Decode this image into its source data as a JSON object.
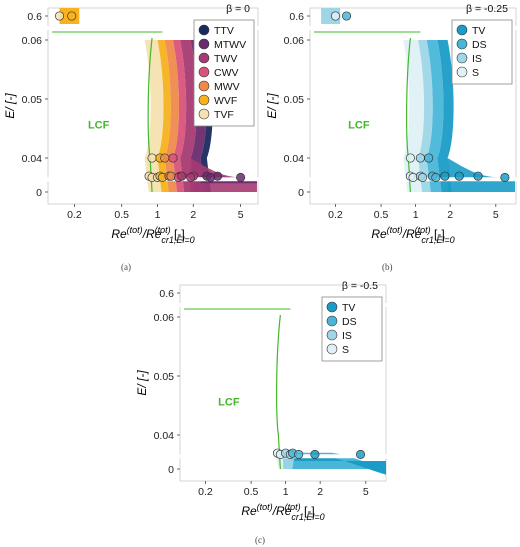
{
  "axes_text": {
    "ylabel": "E/ [-]",
    "xlabel_main": "Re",
    "xlabel_sup1": "(tot)",
    "xlabel_slash": "/Re",
    "xlabel_sub2": "cr1,El=0",
    "xlabel_sup2": "(tot)",
    "xlabel_unit": "[-]"
  },
  "region_label": "LCF",
  "chart_data": [
    {
      "type": "scatter",
      "panel": "a",
      "caption": "(a)",
      "beta_label": "β = 0",
      "x_ticks": [
        "0.2",
        "0.5",
        "1",
        "2",
        "5"
      ],
      "y_ticks": [
        "0",
        "0.04",
        "0.05",
        "0.06",
        "0.6"
      ],
      "x_scale": "log",
      "legend_placement": "top-right",
      "legend": [
        {
          "label": "TTV",
          "color": "#1a2a5e"
        },
        {
          "label": "MTWV",
          "color": "#6a2a6e"
        },
        {
          "label": "TWV",
          "color": "#a63a72"
        },
        {
          "label": "CWV",
          "color": "#d9537a"
        },
        {
          "label": "MWV",
          "color": "#f08a4b"
        },
        {
          "label": "WVF",
          "color": "#f7b21d"
        },
        {
          "label": "TVF",
          "color": "#f4e2b0"
        }
      ],
      "series": [
        {
          "name": "TVF",
          "points": [
            [
              0.15,
              0.6
            ],
            [
              0.9,
              0.04
            ],
            [
              0.85,
              0.036
            ],
            [
              0.9,
              0.033
            ],
            [
              1.0,
              0.033
            ]
          ]
        },
        {
          "name": "WVF",
          "points": [
            [
              0.19,
              0.6
            ],
            [
              1.05,
              0.04
            ],
            [
              1.05,
              0.036
            ],
            [
              1.1,
              0.033
            ]
          ]
        },
        {
          "name": "MWV",
          "points": [
            [
              1.15,
              0.04
            ],
            [
              1.25,
              0.036
            ],
            [
              1.3,
              0.036
            ]
          ]
        },
        {
          "name": "CWV",
          "points": [
            [
              1.35,
              0.04
            ],
            [
              1.55,
              0.036
            ],
            [
              1.5,
              0.033
            ]
          ]
        },
        {
          "name": "TWV",
          "points": [
            [
              1.6,
              0.036
            ],
            [
              2.0,
              0.036
            ],
            [
              1.9,
              0.033
            ]
          ]
        },
        {
          "name": "MTWV",
          "points": [
            [
              2.6,
              0.036
            ],
            [
              3.2,
              0.036
            ],
            [
              2.8,
              0.033
            ],
            [
              5.0,
              0.033
            ]
          ]
        },
        {
          "name": "TTV",
          "points": []
        }
      ]
    },
    {
      "type": "scatter",
      "panel": "b",
      "caption": "(b)",
      "beta_label": "β = -0.25",
      "x_ticks": [
        "0.2",
        "0.5",
        "1",
        "2",
        "5"
      ],
      "y_ticks": [
        "0",
        "0.04",
        "0.05",
        "0.06",
        "0.6"
      ],
      "x_scale": "log",
      "legend_placement": "top-right",
      "legend": [
        {
          "label": "TV",
          "color": "#1a9cc6"
        },
        {
          "label": "DS",
          "color": "#49b6d8"
        },
        {
          "label": "IS",
          "color": "#9ed6e8"
        },
        {
          "label": "S",
          "color": "#dff1f6"
        }
      ],
      "series": [
        {
          "name": "S",
          "points": [
            [
              0.2,
              0.6
            ],
            [
              0.9,
              0.04
            ],
            [
              0.9,
              0.036
            ],
            [
              0.95,
              0.033
            ]
          ]
        },
        {
          "name": "IS",
          "points": [
            [
              1.1,
              0.04
            ],
            [
              1.1,
              0.036
            ],
            [
              1.15,
              0.033
            ]
          ]
        },
        {
          "name": "DS",
          "points": [
            [
              0.25,
              0.6
            ],
            [
              1.3,
              0.04
            ],
            [
              1.4,
              0.036
            ],
            [
              1.5,
              0.033
            ]
          ]
        },
        {
          "name": "TV",
          "points": [
            [
              1.8,
              0.036
            ],
            [
              2.4,
              0.036
            ],
            [
              3.5,
              0.036
            ],
            [
              6.0,
              0.033
            ]
          ]
        }
      ]
    },
    {
      "type": "scatter",
      "panel": "c",
      "caption": "(c)",
      "beta_label": "β = -0.5",
      "x_ticks": [
        "0.2",
        "0.5",
        "1",
        "2",
        "5"
      ],
      "y_ticks": [
        "0",
        "0.04",
        "0.05",
        "0.06",
        "0.6"
      ],
      "x_scale": "log",
      "legend_placement": "top-right",
      "legend": [
        {
          "label": "TV",
          "color": "#1a9cc6"
        },
        {
          "label": "DS",
          "color": "#49b6d8"
        },
        {
          "label": "IS",
          "color": "#9ed6e8"
        },
        {
          "label": "S",
          "color": "#dff1f6"
        }
      ],
      "series": [
        {
          "name": "S",
          "points": [
            [
              0.85,
              0.036
            ],
            [
              0.9,
              0.033
            ]
          ]
        },
        {
          "name": "IS",
          "points": [
            [
              1.0,
              0.036
            ],
            [
              1.1,
              0.033
            ]
          ]
        },
        {
          "name": "DS",
          "points": [
            [
              1.15,
              0.036
            ],
            [
              1.3,
              0.033
            ]
          ]
        },
        {
          "name": "TV",
          "points": [
            [
              1.8,
              0.033
            ],
            [
              4.5,
              0.033
            ]
          ]
        }
      ]
    }
  ]
}
